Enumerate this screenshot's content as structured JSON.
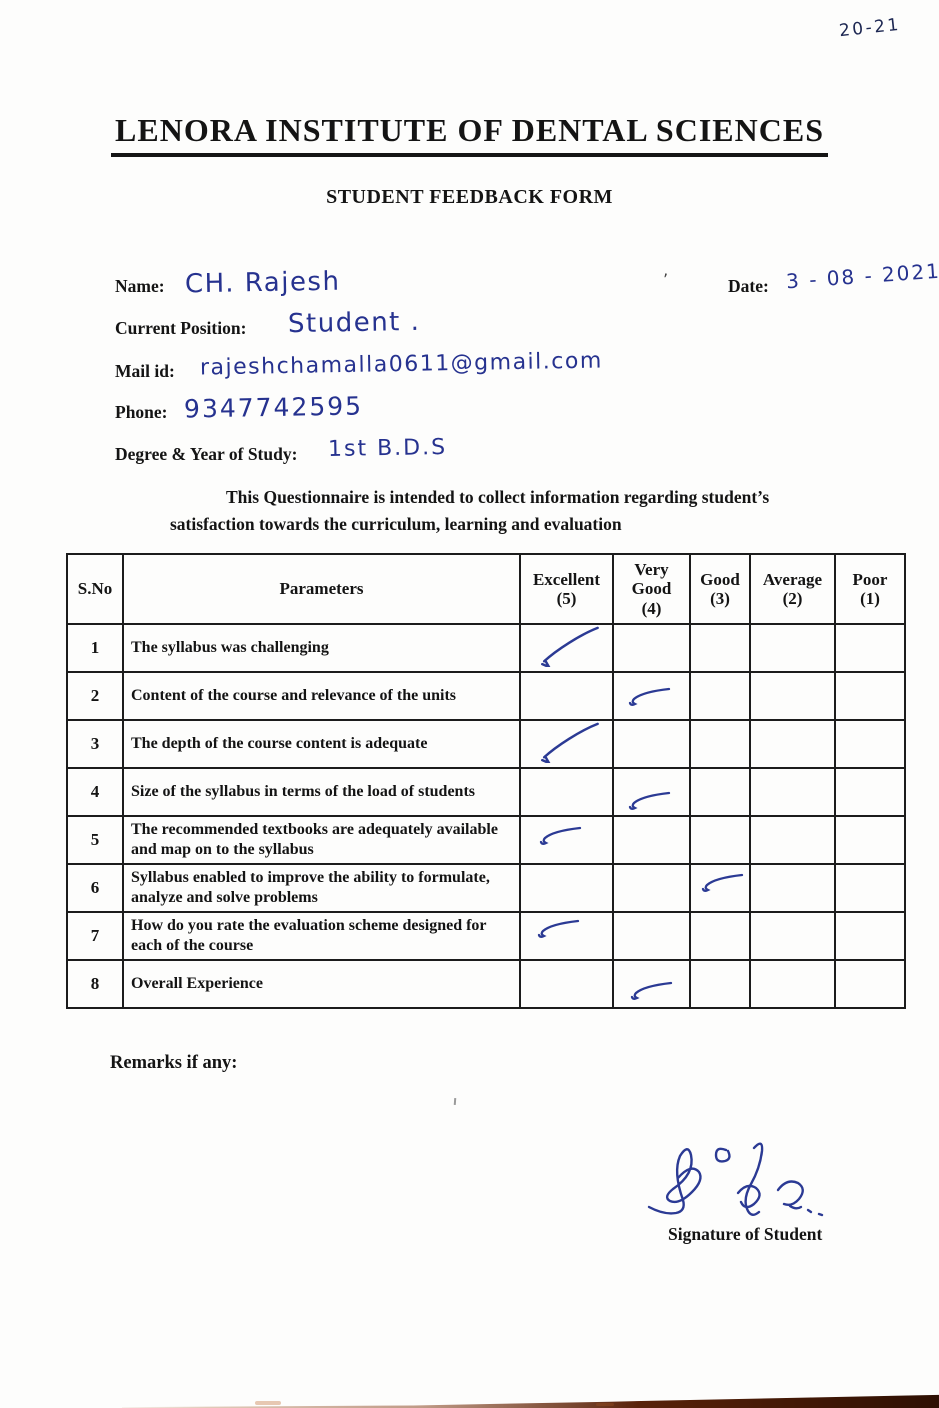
{
  "page": {
    "corner_note": "20-21",
    "title": "LENORA INSTITUTE OF DENTAL SCIENCES",
    "subtitle": "STUDENT FEEDBACK FORM"
  },
  "fields": {
    "name": {
      "label": "Name:",
      "value": "CH. Rajesh"
    },
    "date": {
      "label": "Date:",
      "value": "3 - 08 - 2021"
    },
    "position": {
      "label": "Current Position:",
      "value": "Student ."
    },
    "mail": {
      "label": "Mail id:",
      "value": "rajeshchamalla0611@gmail.com"
    },
    "phone": {
      "label": "Phone:",
      "value": "9347742595"
    },
    "degree": {
      "label": "Degree & Year of Study:",
      "value": "1st B.D.S"
    }
  },
  "intro": "This Questionnaire is intended to collect information regarding student’s satisfaction towards the curriculum, learning and evaluation",
  "table": {
    "columns": [
      {
        "key": "sno",
        "label": "S.No",
        "sub": ""
      },
      {
        "key": "parameter",
        "label": "Parameters",
        "sub": ""
      },
      {
        "key": "excellent",
        "label": "Excellent",
        "sub": "(5)"
      },
      {
        "key": "very_good",
        "label": "Very Good",
        "sub": "(4)"
      },
      {
        "key": "good",
        "label": "Good",
        "sub": "(3)"
      },
      {
        "key": "average",
        "label": "Average",
        "sub": "(2)"
      },
      {
        "key": "poor",
        "label": "Poor",
        "sub": "(1)"
      }
    ],
    "rows": [
      {
        "no": "1",
        "parameter": "The syllabus was challenging",
        "rating": "excellent",
        "mark_style": "long"
      },
      {
        "no": "2",
        "parameter": "Content of the course and relevance of the units",
        "rating": "very_good",
        "mark_style": "short"
      },
      {
        "no": "3",
        "parameter": "The depth of the course content is adequate",
        "rating": "excellent",
        "mark_style": "long"
      },
      {
        "no": "4",
        "parameter": "Size of the syllabus in terms of the load of students",
        "rating": "very_good",
        "mark_style": "short"
      },
      {
        "no": "5",
        "parameter": "The recommended textbooks are adequately available and map on to the syllabus",
        "rating": "excellent",
        "mark_style": "short"
      },
      {
        "no": "6",
        "parameter": "Syllabus enabled to improve the ability to formulate, analyze and solve problems",
        "rating": "good",
        "mark_style": "short"
      },
      {
        "no": "7",
        "parameter": "How do you rate the evaluation scheme designed for each of the course",
        "rating": "excellent",
        "mark_style": "short"
      },
      {
        "no": "8",
        "parameter": "Overall Experience",
        "rating": "very_good",
        "mark_style": "short"
      }
    ]
  },
  "remarks": {
    "label": "Remarks if any:",
    "value": ""
  },
  "signature": {
    "label": "Signature of Student"
  },
  "colors": {
    "ink": "#2b3a94",
    "paper": "#fdfdfc",
    "text": "#141414",
    "border": "#1c1c1c",
    "scan_edge": "#3a1404"
  }
}
